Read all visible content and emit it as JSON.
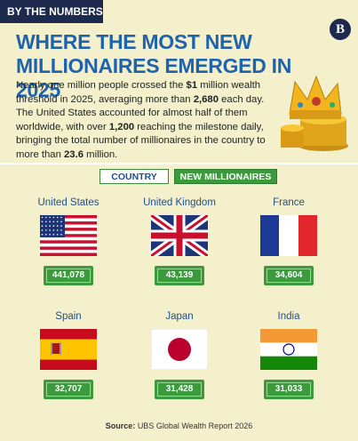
{
  "header": {
    "tag": "BY THE NUMBERS",
    "title": "WHERE THE MOST NEW MILLIONAIRES EMERGED IN 2025",
    "logo": "B"
  },
  "paragraph": [
    {
      "text": "Nearly one million people crossed the ",
      "bold": false
    },
    {
      "text": "$1",
      "bold": true
    },
    {
      "text": " million wealth threshold in 2025, averaging more than ",
      "bold": false
    },
    {
      "text": "2,680",
      "bold": true
    },
    {
      "text": " each day. The United States accounted for almost half of them worldwide, with over ",
      "bold": false
    },
    {
      "text": "1,200",
      "bold": true
    },
    {
      "text": " reaching the milestone daily, bringing the total number of millionaires in the country to more than ",
      "bold": false
    },
    {
      "text": "23.6",
      "bold": true
    },
    {
      "text": " million.",
      "bold": false
    }
  ],
  "legend": [
    "COUNTRY",
    "NEW MILLIONAIRES"
  ],
  "countries": [
    {
      "name": "United States",
      "value": "441,078"
    },
    {
      "name": "United Kingdom",
      "value": "43,139"
    },
    {
      "name": "France",
      "value": "34,604"
    },
    {
      "name": "Spain",
      "value": "32,707"
    },
    {
      "name": "Japan",
      "value": "31,428"
    },
    {
      "name": "India",
      "value": "31,033"
    }
  ],
  "source": {
    "label": "Source:",
    "text": "UBS Global Wealth Report 2026"
  }
}
